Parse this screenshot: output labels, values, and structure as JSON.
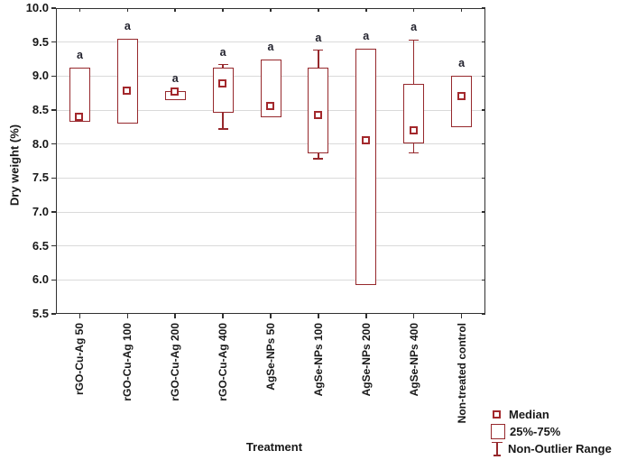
{
  "chart_data": {
    "type": "box",
    "title": "",
    "xlabel": "Treatment",
    "ylabel": "Dry weight (%)",
    "ylim": [
      5.5,
      10.0
    ],
    "yticks": [
      5.5,
      6.0,
      6.5,
      7.0,
      7.5,
      8.0,
      8.5,
      9.0,
      9.5,
      10.0
    ],
    "grid": "horizontal-only",
    "legend_position": "bottom-right",
    "categories": [
      "rGO-Cu-Ag 50",
      "rGO-Cu-Ag 100",
      "rGO-Cu-Ag 200",
      "rGO-Cu-Ag 400",
      "AgSe-NPs 50",
      "AgSe-NPs 100",
      "AgSe-NPs 200",
      "AgSe-NPs 400",
      "Non-treated control"
    ],
    "boxes": [
      {
        "category": "rGO-Cu-Ag 50",
        "q1": 8.33,
        "median": 8.4,
        "q3": 9.12,
        "whisker_low": null,
        "whisker_high": null,
        "sig_label": "a"
      },
      {
        "category": "rGO-Cu-Ag 100",
        "q1": 8.3,
        "median": 8.78,
        "q3": 9.55,
        "whisker_low": null,
        "whisker_high": null,
        "sig_label": "a"
      },
      {
        "category": "rGO-Cu-Ag 200",
        "q1": 8.65,
        "median": 8.77,
        "q3": 8.78,
        "whisker_low": null,
        "whisker_high": null,
        "sig_label": "a"
      },
      {
        "category": "rGO-Cu-Ag 400",
        "q1": 8.46,
        "median": 8.88,
        "q3": 9.12,
        "whisker_low": 8.22,
        "whisker_high": 9.17,
        "sig_label": "a"
      },
      {
        "category": "AgSe-NPs 50",
        "q1": 8.4,
        "median": 8.55,
        "q3": 9.25,
        "whisker_low": null,
        "whisker_high": null,
        "sig_label": "a"
      },
      {
        "category": "AgSe-NPs 100",
        "q1": 7.86,
        "median": 8.42,
        "q3": 9.13,
        "whisker_low": 7.78,
        "whisker_high": 9.38,
        "sig_label": "a"
      },
      {
        "category": "AgSe-NPs 200",
        "q1": 5.92,
        "median": 8.05,
        "q3": 9.4,
        "whisker_low": null,
        "whisker_high": null,
        "sig_label": "a"
      },
      {
        "category": "AgSe-NPs 400",
        "q1": 8.01,
        "median": 8.2,
        "q3": 8.88,
        "whisker_low": 7.87,
        "whisker_high": 9.53,
        "sig_label": "a"
      },
      {
        "category": "Non-treated control",
        "q1": 8.25,
        "median": 8.7,
        "q3": 9.0,
        "whisker_low": null,
        "whisker_high": null,
        "sig_label": "a"
      }
    ],
    "legend": [
      {
        "symbol": "median-square",
        "label": "Median"
      },
      {
        "symbol": "box-25-75",
        "label": "25%-75%"
      },
      {
        "symbol": "whisker-range",
        "label": "Non-Outlier Range"
      }
    ],
    "colors": {
      "box_stroke": "#96282c",
      "median_stroke": "#a3282c",
      "grid_line": "#dadada",
      "axis_frame": "#303030",
      "tick_text": "#181818",
      "sig_text": "#23232e",
      "background": "#ffffff"
    }
  }
}
